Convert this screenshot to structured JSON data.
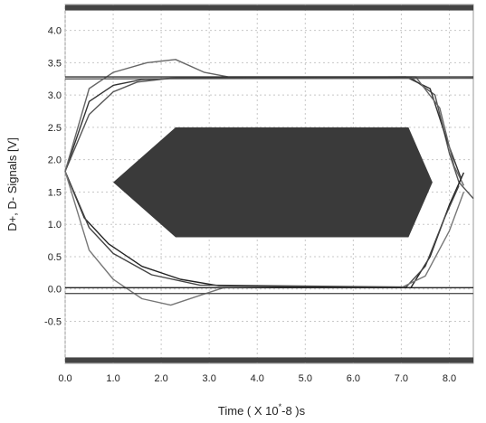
{
  "chart_data": {
    "type": "line",
    "title": "",
    "xlabel": "Time ( X 10^-8 )s",
    "xlabel_parts": {
      "prefix": "Time ( X 10",
      "sup": "*",
      "suffix": "-8 )s"
    },
    "ylabel": "D+, D- Signals [V]",
    "xlim": [
      0.0,
      8.5
    ],
    "ylim": [
      -1.15,
      4.4
    ],
    "x_ticks": [
      "0.0",
      "1.0",
      "2.0",
      "3.0",
      "4.0",
      "5.0",
      "6.0",
      "7.0",
      "8.0"
    ],
    "x_tick_values": [
      0,
      1,
      2,
      3,
      4,
      5,
      6,
      7,
      8
    ],
    "y_ticks": [
      "4.0",
      "3.5",
      "3.0",
      "2.5",
      "2.0",
      "1.5",
      "1.0",
      "0.5",
      "0.0",
      "-0.5"
    ],
    "y_tick_values": [
      4.0,
      3.5,
      3.0,
      2.5,
      2.0,
      1.5,
      1.0,
      0.5,
      0.0,
      -0.5
    ],
    "grid": true,
    "limit_bars_v": [
      4.35,
      -1.1
    ],
    "eye_mask": [
      [
        1.0,
        1.65
      ],
      [
        2.3,
        2.5
      ],
      [
        7.15,
        2.5
      ],
      [
        7.65,
        1.65
      ],
      [
        7.15,
        0.8
      ],
      [
        2.3,
        0.8
      ]
    ],
    "series": [
      {
        "values": [
          [
            0.0,
            1.82
          ],
          [
            0.5,
            2.7
          ],
          [
            1.0,
            3.05
          ],
          [
            1.5,
            3.2
          ],
          [
            2.2,
            3.26
          ],
          [
            7.2,
            3.27
          ],
          [
            7.7,
            3.0
          ],
          [
            8.0,
            2.1
          ],
          [
            8.2,
            1.65
          ],
          [
            8.5,
            1.4
          ]
        ]
      },
      {
        "values": [
          [
            0.0,
            1.82
          ],
          [
            0.5,
            2.9
          ],
          [
            1.0,
            3.15
          ],
          [
            1.6,
            3.24
          ],
          [
            2.3,
            3.26
          ],
          [
            7.1,
            3.28
          ],
          [
            7.6,
            3.1
          ],
          [
            7.95,
            2.3
          ],
          [
            8.25,
            1.7
          ]
        ]
      },
      {
        "values": [
          [
            0.0,
            1.82
          ],
          [
            0.5,
            3.1
          ],
          [
            1.0,
            3.35
          ],
          [
            1.7,
            3.5
          ],
          [
            2.3,
            3.55
          ],
          [
            2.9,
            3.35
          ],
          [
            3.4,
            3.28
          ],
          [
            7.3,
            3.28
          ],
          [
            7.8,
            2.8
          ],
          [
            8.1,
            1.9
          ],
          [
            8.3,
            1.6
          ]
        ]
      },
      {
        "values": [
          [
            0.0,
            1.82
          ],
          [
            0.4,
            1.1
          ],
          [
            0.9,
            0.7
          ],
          [
            1.6,
            0.35
          ],
          [
            2.4,
            0.15
          ],
          [
            3.2,
            0.05
          ],
          [
            7.2,
            0.02
          ],
          [
            7.6,
            0.5
          ],
          [
            8.0,
            1.3
          ],
          [
            8.3,
            1.8
          ]
        ]
      },
      {
        "values": [
          [
            0.0,
            1.82
          ],
          [
            0.5,
            0.95
          ],
          [
            1.0,
            0.55
          ],
          [
            1.8,
            0.22
          ],
          [
            2.8,
            0.06
          ],
          [
            7.1,
            0.03
          ],
          [
            7.5,
            0.35
          ],
          [
            7.9,
            1.1
          ],
          [
            8.2,
            1.6
          ]
        ]
      },
      {
        "values": [
          [
            0.0,
            1.82
          ],
          [
            0.5,
            0.6
          ],
          [
            1.0,
            0.15
          ],
          [
            1.6,
            -0.15
          ],
          [
            2.2,
            -0.25
          ],
          [
            2.8,
            -0.1
          ],
          [
            3.3,
            0.02
          ],
          [
            7.0,
            0.02
          ],
          [
            7.5,
            0.2
          ],
          [
            8.0,
            0.9
          ],
          [
            8.3,
            1.5
          ]
        ]
      },
      {
        "values": [
          [
            0.0,
            3.28
          ],
          [
            8.5,
            3.28
          ]
        ]
      },
      {
        "values": [
          [
            0.0,
            3.25
          ],
          [
            8.5,
            3.26
          ]
        ]
      },
      {
        "values": [
          [
            0.0,
            0.02
          ],
          [
            8.5,
            0.02
          ]
        ]
      },
      {
        "values": [
          [
            0.0,
            -0.07
          ],
          [
            8.5,
            -0.07
          ]
        ]
      }
    ]
  }
}
